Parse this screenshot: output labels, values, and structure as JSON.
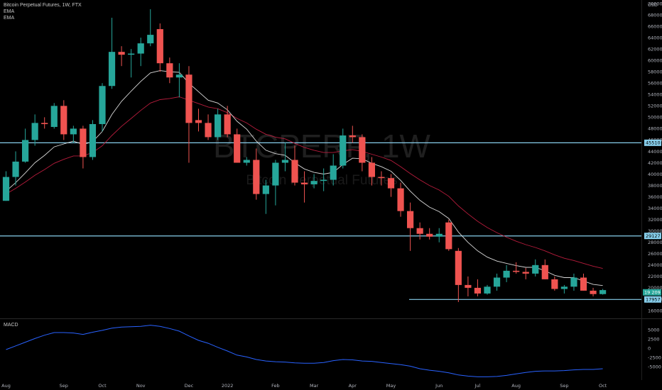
{
  "header": {
    "symbol_line": "Bitcoin Perpetual Futures, 1W, FTX",
    "indicator_1": "EMA",
    "indicator_2": "EMA"
  },
  "watermark": {
    "ticker": "BTCPERP, 1W",
    "name": "Bitcoin Perpetual Futures"
  },
  "colors": {
    "background": "#000000",
    "up": "#26a69a",
    "down": "#ef5350",
    "ema_fast": "#d9d9d9",
    "ema_slow": "#b71c3c",
    "macd": "#2962ff",
    "level_line": "#87ceeb"
  },
  "price_axis": {
    "currency": "USD"
  },
  "markers": {
    "last_price": "19 209",
    "levels": [
      "45510",
      "29127",
      "17957"
    ]
  },
  "macd_pane": {
    "label": "MACD"
  },
  "chart_data": [
    {
      "type": "candlestick",
      "title": "Bitcoin Perpetual Futures, 1W, FTX",
      "ylabel": "USD",
      "ylim": [
        15000,
        70000
      ],
      "y_ticks": [
        16000,
        18000,
        20000,
        22000,
        24000,
        26000,
        28000,
        30000,
        32000,
        34000,
        36000,
        38000,
        40000,
        42000,
        44000,
        46000,
        48000,
        50000,
        52000,
        54000,
        56000,
        58000,
        60000,
        62000,
        64000,
        66000,
        68000,
        70000
      ],
      "x_ticks": [
        {
          "label": "Aug",
          "index": 0
        },
        {
          "label": "Sep",
          "index": 6
        },
        {
          "label": "Oct",
          "index": 10
        },
        {
          "label": "Nov",
          "index": 14
        },
        {
          "label": "Dec",
          "index": 19
        },
        {
          "label": "2022",
          "index": 23
        },
        {
          "label": "Feb",
          "index": 28
        },
        {
          "label": "Mar",
          "index": 32
        },
        {
          "label": "Apr",
          "index": 36
        },
        {
          "label": "May",
          "index": 40
        },
        {
          "label": "Jun",
          "index": 45
        },
        {
          "label": "Jul",
          "index": 49
        },
        {
          "label": "Aug",
          "index": 53
        },
        {
          "label": "Sep",
          "index": 58
        },
        {
          "label": "Oct",
          "index": 62
        }
      ],
      "candles": [
        {
          "o": 35300,
          "h": 40500,
          "l": 35300,
          "c": 39500
        },
        {
          "o": 39500,
          "h": 44000,
          "l": 38000,
          "c": 42200
        },
        {
          "o": 42200,
          "h": 48000,
          "l": 42000,
          "c": 46000
        },
        {
          "o": 46000,
          "h": 50500,
          "l": 45000,
          "c": 49000
        },
        {
          "o": 49000,
          "h": 50000,
          "l": 48000,
          "c": 48800
        },
        {
          "o": 48300,
          "h": 52500,
          "l": 48000,
          "c": 52000
        },
        {
          "o": 52000,
          "h": 53000,
          "l": 46000,
          "c": 47000
        },
        {
          "o": 47000,
          "h": 48500,
          "l": 45500,
          "c": 48000
        },
        {
          "o": 48000,
          "h": 48500,
          "l": 41000,
          "c": 43000
        },
        {
          "o": 43000,
          "h": 49500,
          "l": 42500,
          "c": 48800
        },
        {
          "o": 48800,
          "h": 56000,
          "l": 47500,
          "c": 55500
        },
        {
          "o": 55500,
          "h": 67500,
          "l": 55000,
          "c": 61500
        },
        {
          "o": 61500,
          "h": 62500,
          "l": 59000,
          "c": 61000
        },
        {
          "o": 61000,
          "h": 62000,
          "l": 57000,
          "c": 61200
        },
        {
          "o": 61200,
          "h": 64000,
          "l": 59000,
          "c": 63000
        },
        {
          "o": 63000,
          "h": 69000,
          "l": 62500,
          "c": 64500
        },
        {
          "o": 65500,
          "h": 66500,
          "l": 58000,
          "c": 59500
        },
        {
          "o": 59500,
          "h": 60500,
          "l": 56000,
          "c": 57000
        },
        {
          "o": 57000,
          "h": 59500,
          "l": 53500,
          "c": 57500
        },
        {
          "o": 57500,
          "h": 59000,
          "l": 42000,
          "c": 49000
        },
        {
          "o": 49500,
          "h": 51500,
          "l": 47500,
          "c": 49000
        },
        {
          "o": 49000,
          "h": 50500,
          "l": 46000,
          "c": 46500
        },
        {
          "o": 46500,
          "h": 51500,
          "l": 46000,
          "c": 50500
        },
        {
          "o": 50500,
          "h": 52000,
          "l": 46500,
          "c": 47000
        },
        {
          "o": 47000,
          "h": 48000,
          "l": 42000,
          "c": 42000
        },
        {
          "o": 42000,
          "h": 43000,
          "l": 41500,
          "c": 42500
        },
        {
          "o": 42500,
          "h": 44500,
          "l": 35500,
          "c": 36500
        },
        {
          "o": 36500,
          "h": 39000,
          "l": 33000,
          "c": 38000
        },
        {
          "o": 38000,
          "h": 42500,
          "l": 34500,
          "c": 42000
        },
        {
          "o": 42000,
          "h": 45500,
          "l": 40500,
          "c": 42500
        },
        {
          "o": 42500,
          "h": 45000,
          "l": 38000,
          "c": 38500
        },
        {
          "o": 38500,
          "h": 40500,
          "l": 35000,
          "c": 38200
        },
        {
          "o": 38200,
          "h": 40000,
          "l": 37500,
          "c": 38800
        },
        {
          "o": 38800,
          "h": 41000,
          "l": 37000,
          "c": 39000
        },
        {
          "o": 39000,
          "h": 43500,
          "l": 38000,
          "c": 41500
        },
        {
          "o": 41500,
          "h": 48000,
          "l": 41000,
          "c": 46800
        },
        {
          "o": 46800,
          "h": 48500,
          "l": 45500,
          "c": 46500
        },
        {
          "o": 46500,
          "h": 47000,
          "l": 40500,
          "c": 42000
        },
        {
          "o": 42000,
          "h": 43000,
          "l": 38000,
          "c": 39500
        },
        {
          "o": 39500,
          "h": 40500,
          "l": 38000,
          "c": 39300
        },
        {
          "o": 39300,
          "h": 40000,
          "l": 36000,
          "c": 37500
        },
        {
          "o": 37500,
          "h": 38500,
          "l": 32500,
          "c": 33500
        },
        {
          "o": 33500,
          "h": 35000,
          "l": 26500,
          "c": 30500
        },
        {
          "o": 30500,
          "h": 31500,
          "l": 28500,
          "c": 29500
        },
        {
          "o": 29500,
          "h": 30500,
          "l": 28500,
          "c": 29000
        },
        {
          "o": 29000,
          "h": 30500,
          "l": 28000,
          "c": 29500
        },
        {
          "o": 31500,
          "h": 32000,
          "l": 26500,
          "c": 26800
        },
        {
          "o": 26500,
          "h": 27000,
          "l": 17500,
          "c": 20500
        },
        {
          "o": 20500,
          "h": 22000,
          "l": 18500,
          "c": 20000
        },
        {
          "o": 20000,
          "h": 21500,
          "l": 18500,
          "c": 19000
        },
        {
          "o": 19000,
          "h": 20500,
          "l": 18800,
          "c": 20200
        },
        {
          "o": 20200,
          "h": 22500,
          "l": 19500,
          "c": 21800
        },
        {
          "o": 21800,
          "h": 24000,
          "l": 21000,
          "c": 23000
        },
        {
          "o": 23000,
          "h": 24500,
          "l": 22500,
          "c": 22800
        },
        {
          "o": 22800,
          "h": 23500,
          "l": 21500,
          "c": 22500
        },
        {
          "o": 22500,
          "h": 25000,
          "l": 22000,
          "c": 24000
        },
        {
          "o": 24000,
          "h": 25000,
          "l": 21500,
          "c": 21500
        },
        {
          "o": 21500,
          "h": 22000,
          "l": 19500,
          "c": 19800
        },
        {
          "o": 19800,
          "h": 20500,
          "l": 19000,
          "c": 20200
        },
        {
          "o": 20200,
          "h": 22500,
          "l": 19500,
          "c": 21800
        },
        {
          "o": 21800,
          "h": 22500,
          "l": 19500,
          "c": 19500
        },
        {
          "o": 19500,
          "h": 20000,
          "l": 18500,
          "c": 18900
        },
        {
          "o": 18900,
          "h": 19800,
          "l": 18800,
          "c": 19600
        }
      ],
      "ema_fast": [
        37000,
        38500,
        40200,
        42000,
        43300,
        44800,
        45300,
        45800,
        45200,
        45700,
        47500,
        50500,
        52800,
        54600,
        56300,
        57800,
        58200,
        58000,
        57900,
        56000,
        54500,
        53000,
        52500,
        51300,
        49300,
        47900,
        45800,
        44200,
        43600,
        43300,
        42000,
        40900,
        40300,
        40000,
        40300,
        41700,
        42800,
        42700,
        41900,
        41300,
        40500,
        38900,
        37000,
        35400,
        34200,
        33400,
        32200,
        29800,
        28000,
        26500,
        25400,
        24700,
        24300,
        23900,
        23600,
        23600,
        23000,
        22200,
        21800,
        21800,
        21200,
        20600,
        20400
      ],
      "ema_slow": [
        36500,
        37500,
        38600,
        39800,
        40800,
        41900,
        42600,
        43200,
        43200,
        43800,
        45000,
        46800,
        48400,
        49800,
        51200,
        52500,
        53100,
        53300,
        53600,
        53000,
        52400,
        51800,
        51500,
        50800,
        49800,
        49000,
        47900,
        47000,
        46500,
        46200,
        45400,
        44700,
        44200,
        43800,
        43800,
        44100,
        44300,
        44000,
        43500,
        43000,
        42400,
        41300,
        40100,
        39000,
        38000,
        37200,
        36100,
        34400,
        33000,
        31700,
        30600,
        29700,
        28900,
        28200,
        27600,
        27100,
        26500,
        25800,
        25200,
        24800,
        24300,
        23800,
        23400
      ],
      "levels": [
        45510,
        29127,
        17957
      ],
      "last_price": 19209
    },
    {
      "type": "line",
      "title": "MACD",
      "ylim": [
        -8000,
        7000
      ],
      "y_ticks": [
        5000,
        2500,
        0,
        -2500,
        -5000
      ],
      "series": [
        {
          "values": [
            -300,
            700,
            1700,
            2700,
            3600,
            4300,
            4300,
            4200,
            3800,
            4400,
            4900,
            5500,
            5800,
            5900,
            6000,
            6300,
            6000,
            5400,
            4700,
            3400,
            2200,
            1400,
            300,
            -700,
            -1800,
            -2300,
            -3000,
            -3400,
            -3600,
            -3700,
            -3900,
            -4000,
            -4000,
            -3800,
            -3300,
            -3000,
            -3100,
            -3400,
            -3500,
            -3800,
            -4100,
            -4400,
            -4800,
            -5500,
            -5900,
            -6200,
            -6600,
            -7200,
            -7500,
            -7700,
            -7700,
            -7600,
            -7300,
            -6900,
            -6500,
            -6200,
            -6100,
            -6100,
            -6000,
            -5800,
            -5700,
            -5700,
            -5500
          ]
        }
      ]
    }
  ]
}
